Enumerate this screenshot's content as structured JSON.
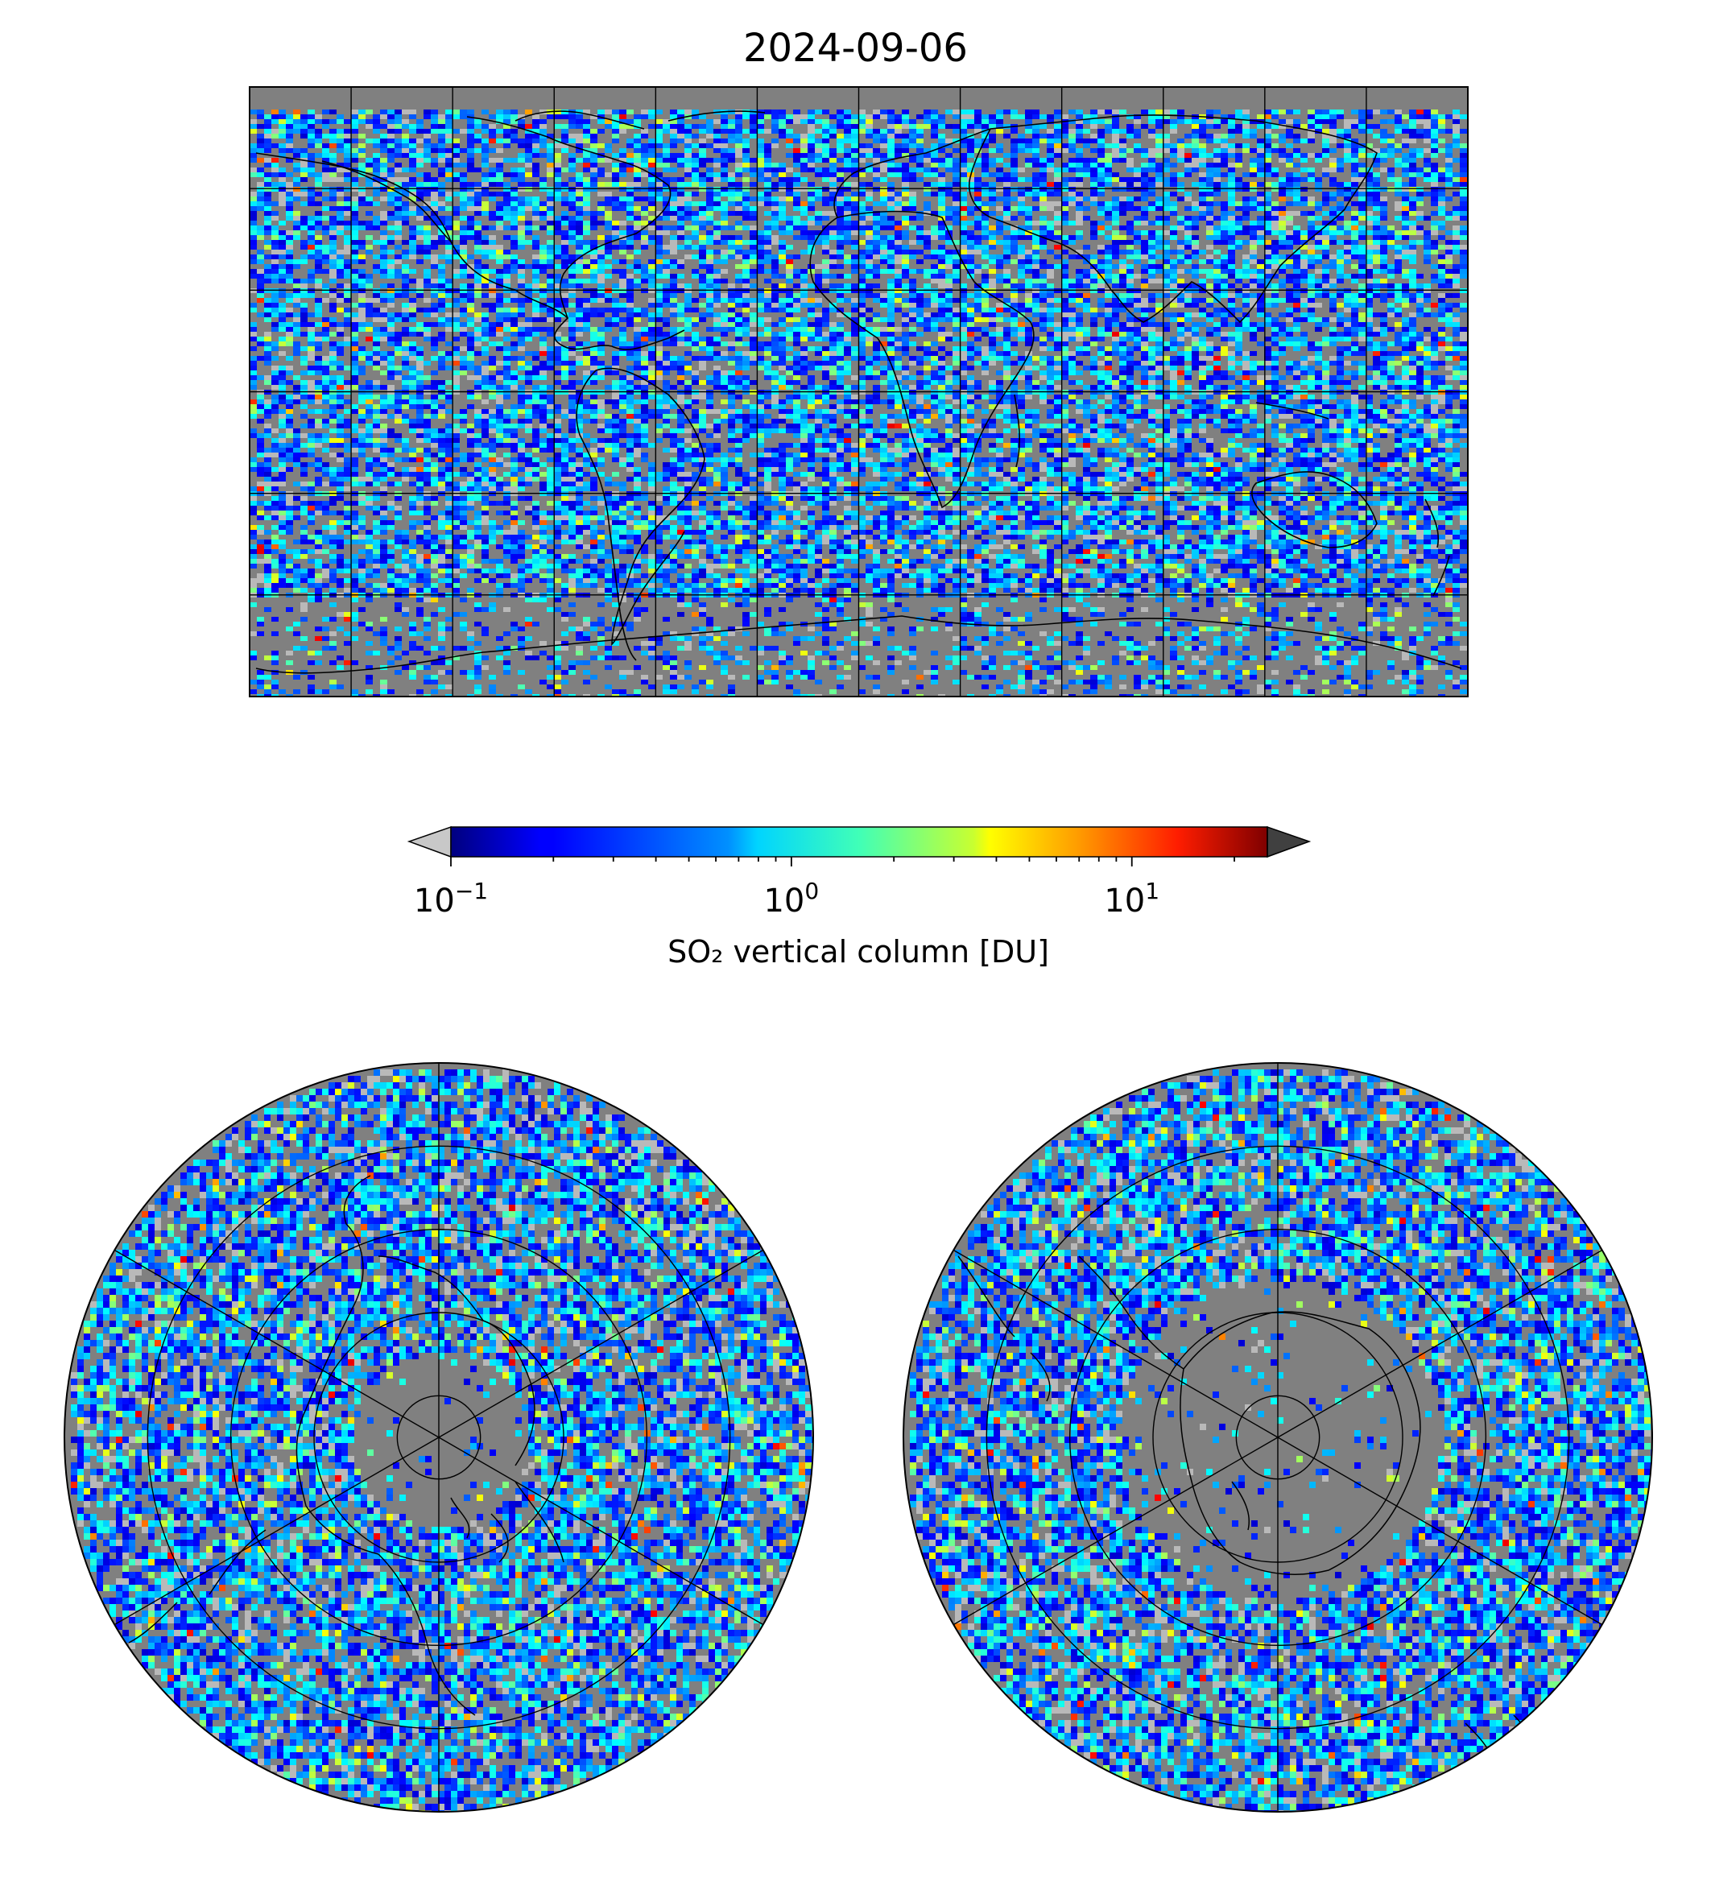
{
  "title": "2024-09-06",
  "colorbar": {
    "label": "SO₂ vertical column [DU]",
    "scale": "log",
    "range": [
      0.1,
      25
    ],
    "colormap": "jet",
    "extend": "both",
    "under_color": "#c8c8c8",
    "over_color": "#404040",
    "ticks": [
      {
        "value": 0.1,
        "base": "10",
        "exp": "−1"
      },
      {
        "value": 1,
        "base": "10",
        "exp": "0"
      },
      {
        "value": 10,
        "base": "10",
        "exp": "1"
      }
    ]
  },
  "maps": {
    "global": {
      "projection": "equirectangular",
      "background": "#808080",
      "grid_lon_step_deg": 30,
      "grid_lat_step_deg": 30
    },
    "north_polar": {
      "projection": "north polar stereographic",
      "background": "#808080",
      "grid_lat_circles_deg": [
        80,
        60,
        40,
        20,
        0
      ],
      "grid_meridian_step_deg": 60
    },
    "south_polar": {
      "projection": "south polar stereographic",
      "background": "#808080",
      "grid_lat_circles_deg": [
        -80,
        -60,
        -40,
        -20,
        0
      ],
      "grid_meridian_step_deg": 60
    }
  },
  "colors": {
    "no_data": "#808080",
    "coastline": "#000000",
    "grid": "#000000"
  }
}
